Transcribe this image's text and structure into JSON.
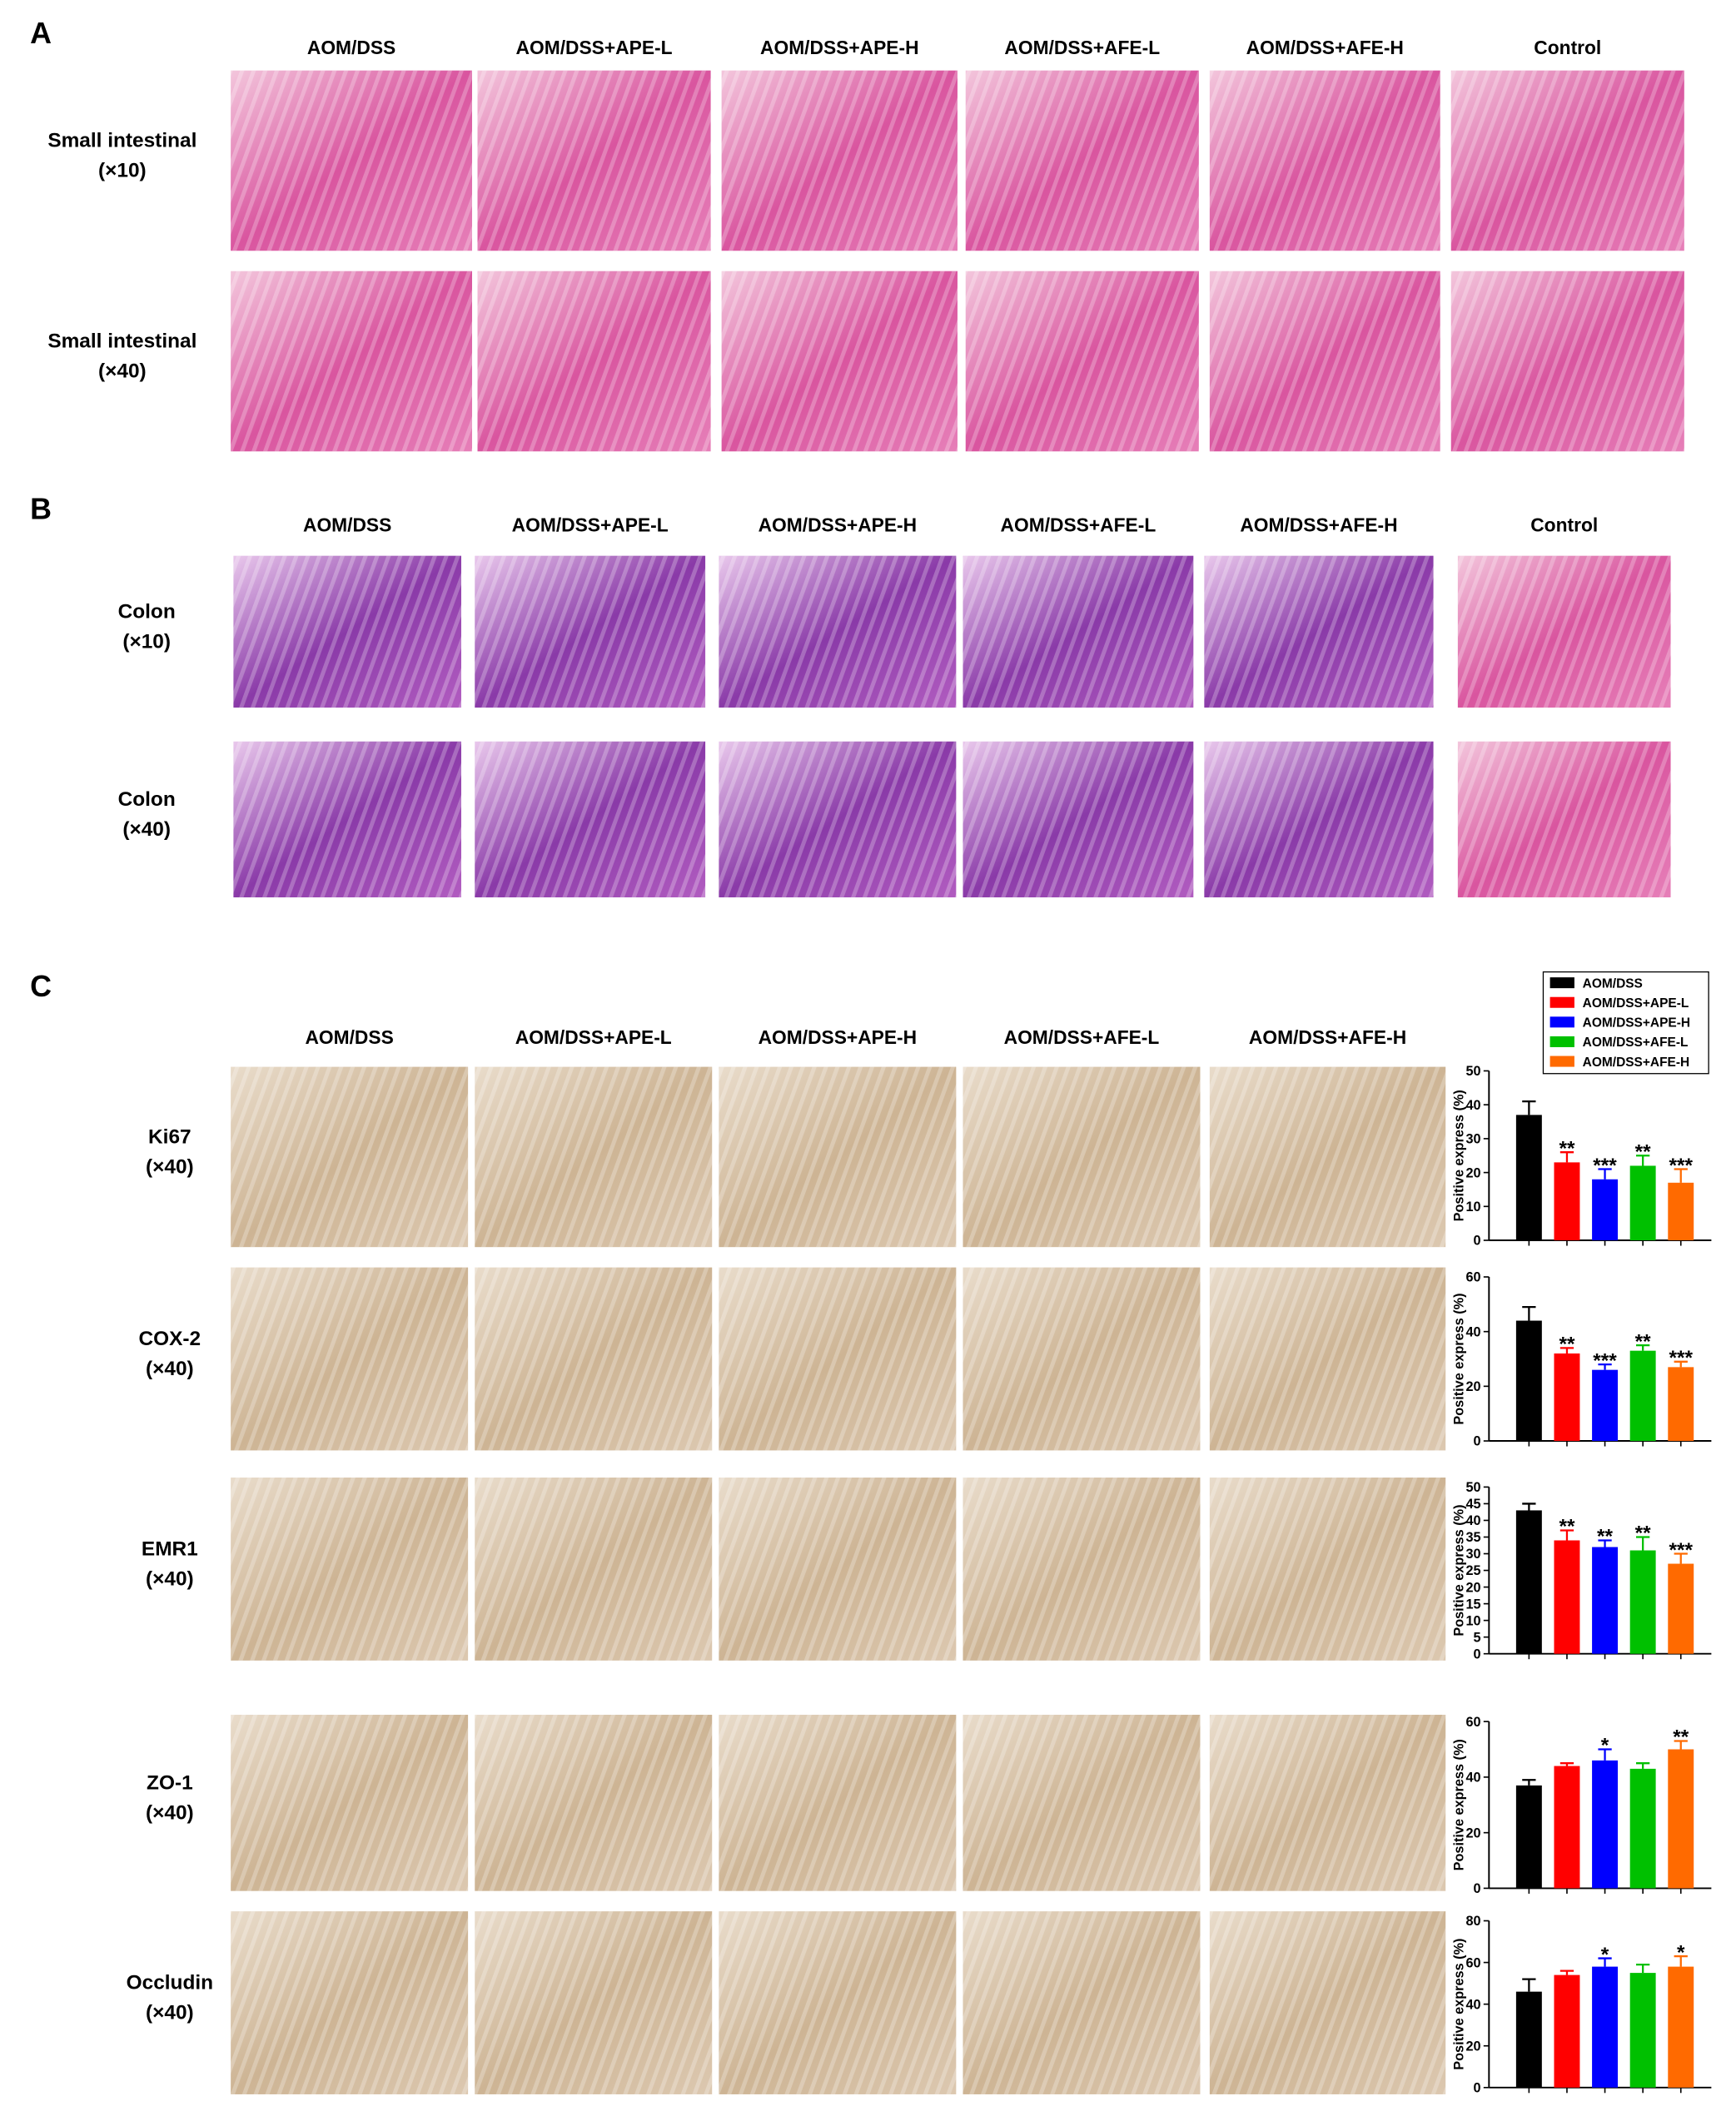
{
  "panel_a": {
    "label": "A",
    "columns": [
      "AOM/DSS",
      "AOM/DSS+APE-L",
      "AOM/DSS+APE-H",
      "AOM/DSS+AFE-L",
      "AOM/DSS+AFE-H",
      "Control"
    ],
    "rows": [
      [
        "Small intestinal",
        "(×10)"
      ],
      [
        "Small intestinal",
        "(×40)"
      ]
    ]
  },
  "panel_b": {
    "label": "B",
    "columns": [
      "AOM/DSS",
      "AOM/DSS+APE-L",
      "AOM/DSS+APE-H",
      "AOM/DSS+AFE-L",
      "AOM/DSS+AFE-H",
      "Control"
    ],
    "rows": [
      [
        "Colon",
        "(×10)"
      ],
      [
        "Colon",
        "(×40)"
      ]
    ]
  },
  "panel_c": {
    "label": "C",
    "columns": [
      "AOM/DSS",
      "AOM/DSS+APE-L",
      "AOM/DSS+APE-H",
      "AOM/DSS+AFE-L",
      "AOM/DSS+AFE-H"
    ],
    "rows": [
      [
        "Ki67",
        "(×40)"
      ],
      [
        "COX-2",
        "(×40)"
      ],
      [
        "EMR1",
        "(×40)"
      ],
      [
        "ZO-1",
        "(×40)"
      ],
      [
        "Occludin",
        "(×40)"
      ]
    ],
    "legend": [
      {
        "name": "AOM/DSS",
        "color": "#000000"
      },
      {
        "name": "AOM/DSS+APE-L",
        "color": "#ff0000"
      },
      {
        "name": "AOM/DSS+APE-H",
        "color": "#0000ff"
      },
      {
        "name": "AOM/DSS+AFE-L",
        "color": "#00c000"
      },
      {
        "name": "AOM/DSS+AFE-H",
        "color": "#ff6a00"
      }
    ]
  },
  "chart_data": [
    {
      "type": "bar",
      "ylabel": "Positive express (%)",
      "ylim": [
        0,
        50
      ],
      "yticks": [
        0,
        10,
        20,
        30,
        40,
        50
      ],
      "values": [
        37,
        23,
        18,
        22,
        17
      ],
      "errors": [
        4,
        3,
        3,
        3,
        4
      ],
      "significance": [
        null,
        "**",
        "***",
        "**",
        "***"
      ]
    },
    {
      "type": "bar",
      "ylabel": "Positive express (%)",
      "ylim": [
        0,
        60
      ],
      "yticks": [
        0,
        20,
        40,
        60
      ],
      "values": [
        44,
        32,
        26,
        33,
        27
      ],
      "errors": [
        5,
        2,
        2,
        2,
        2
      ],
      "significance": [
        null,
        "**",
        "***",
        "**",
        "***"
      ]
    },
    {
      "type": "bar",
      "ylabel": "Positive express (%)",
      "ylim": [
        0,
        50
      ],
      "yticks": [
        0,
        5,
        10,
        15,
        20,
        25,
        30,
        35,
        40,
        45,
        50
      ],
      "values": [
        43,
        34,
        32,
        31,
        27
      ],
      "errors": [
        2,
        3,
        2,
        4,
        3
      ],
      "significance": [
        null,
        "**",
        "**",
        "**",
        "***"
      ]
    },
    {
      "type": "bar",
      "ylabel": "Positive express (%)",
      "ylim": [
        0,
        60
      ],
      "yticks": [
        0,
        20,
        40,
        60
      ],
      "values": [
        37,
        44,
        46,
        43,
        50
      ],
      "errors": [
        2,
        1,
        4,
        2,
        3
      ],
      "significance": [
        null,
        null,
        "*",
        null,
        "**"
      ]
    },
    {
      "type": "bar",
      "ylabel": "Positive express (%)",
      "ylim": [
        0,
        80
      ],
      "yticks": [
        0,
        20,
        40,
        60,
        80
      ],
      "values": [
        46,
        54,
        58,
        55,
        58
      ],
      "errors": [
        6,
        2,
        4,
        4,
        5
      ],
      "significance": [
        null,
        null,
        "*",
        null,
        "*"
      ]
    }
  ]
}
